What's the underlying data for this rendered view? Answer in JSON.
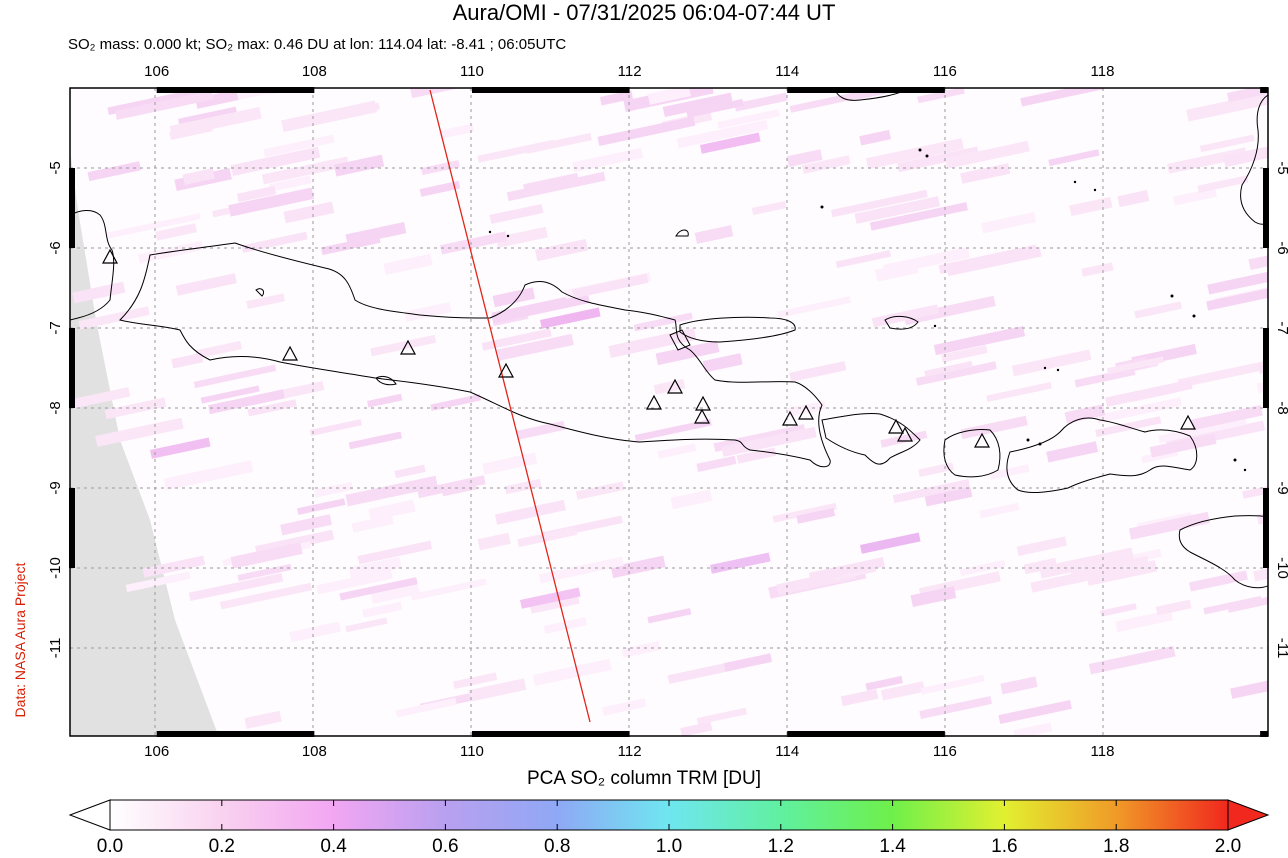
{
  "title": "Aura/OMI - 07/31/2025 06:04-07:44 UT",
  "subtitle": "SO₂ mass: 0.000 kt; SO₂ max: 0.46 DU at lon: 114.04 lat: -8.41 ; 06:05UTC",
  "credit": "Data: NASA Aura Project",
  "map": {
    "lon_range": [
      104.9,
      120.1
    ],
    "lat_range": [
      -12.1,
      -4.0
    ],
    "lon_ticks": [
      "106",
      "108",
      "110",
      "112",
      "114",
      "116",
      "118"
    ],
    "lat_ticks": [
      "-5",
      "-6",
      "-7",
      "-8",
      "-9",
      "-10",
      "-11"
    ],
    "grid": "dashed",
    "orbit_track_color": "#e0261a",
    "volcano_marker": "triangle-icon",
    "missing_data_color": "#e1e1e1",
    "pixel_tint_color": "#f7d6f5"
  },
  "colorbar": {
    "title": "PCA SO₂ column TRM [DU]",
    "labels": [
      "0.0",
      "0.2",
      "0.4",
      "0.6",
      "0.8",
      "1.0",
      "1.2",
      "1.4",
      "1.6",
      "1.8",
      "2.0"
    ],
    "colors": [
      "#ffffff",
      "#f9d2f0",
      "#f2a6f2",
      "#b9a0f0",
      "#8fa8f5",
      "#6fe6f0",
      "#60f0a0",
      "#6ef04a",
      "#e2f030",
      "#f09a28",
      "#f0281e"
    ]
  }
}
